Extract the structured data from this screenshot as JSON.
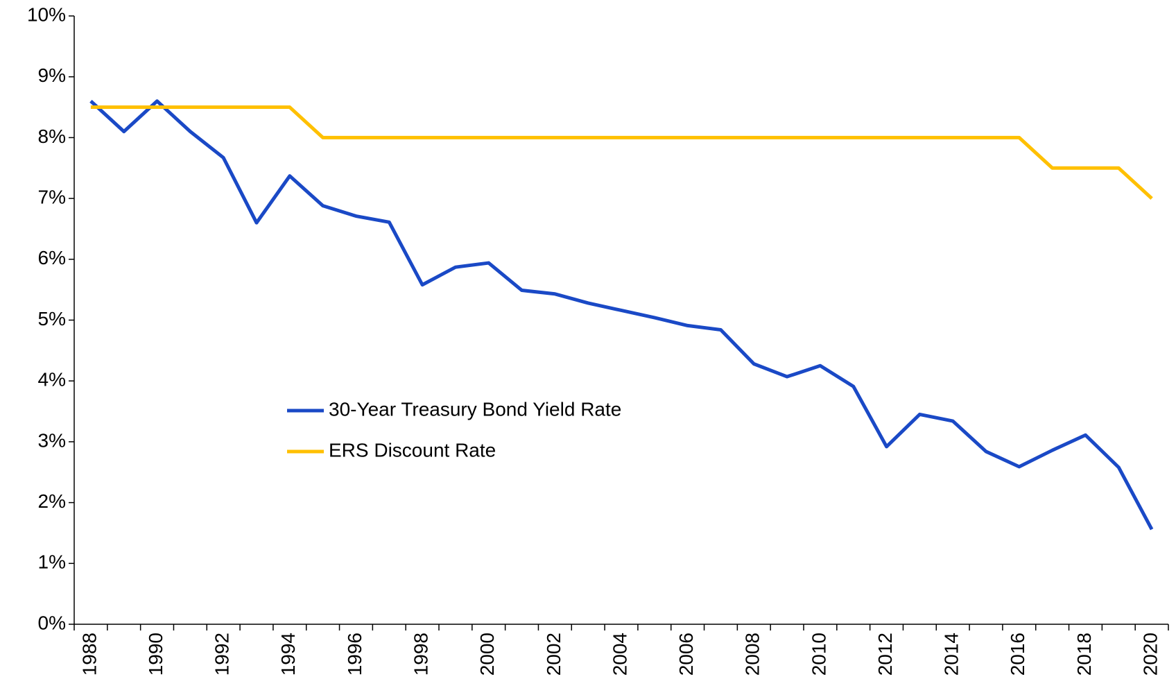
{
  "chart_data": {
    "type": "line",
    "categories": [
      "1988",
      null,
      "1990",
      null,
      "1992",
      null,
      "1994",
      null,
      "1996",
      null,
      "1998",
      null,
      "2000",
      null,
      "2002",
      null,
      "2004",
      null,
      "2006",
      null,
      "2008",
      null,
      "2010",
      null,
      "2012",
      null,
      "2014",
      null,
      "2016",
      null,
      "2018",
      null,
      "2020"
    ],
    "series": [
      {
        "name": "30-Year Treasury Bond Yield Rate",
        "color": "#1a49c6",
        "values": [
          8.6,
          8.1,
          8.6,
          8.1,
          7.67,
          6.6,
          7.37,
          6.88,
          6.71,
          6.61,
          5.58,
          5.87,
          5.94,
          5.49,
          5.43,
          5.28,
          5.16,
          5.04,
          4.91,
          4.84,
          4.28,
          4.07,
          4.25,
          3.91,
          2.92,
          3.45,
          3.34,
          2.84,
          2.59,
          2.86,
          3.11,
          2.58,
          1.56
        ]
      },
      {
        "name": "ERS Discount Rate",
        "color": "#ffc000",
        "values": [
          8.5,
          8.5,
          8.5,
          8.5,
          8.5,
          8.5,
          8.5,
          8.0,
          8.0,
          8.0,
          8.0,
          8.0,
          8.0,
          8.0,
          8.0,
          8.0,
          8.0,
          8.0,
          8.0,
          8.0,
          8.0,
          8.0,
          8.0,
          8.0,
          8.0,
          8.0,
          8.0,
          8.0,
          8.0,
          7.5,
          7.5,
          7.5,
          7.0
        ]
      }
    ],
    "ylim": [
      0,
      10
    ],
    "yticks": [
      {
        "value": 0,
        "label": "0%"
      },
      {
        "value": 1,
        "label": "1%"
      },
      {
        "value": 2,
        "label": "2%"
      },
      {
        "value": 3,
        "label": "3%"
      },
      {
        "value": 4,
        "label": "4%"
      },
      {
        "value": 5,
        "label": "5%"
      },
      {
        "value": 6,
        "label": "6%"
      },
      {
        "value": 7,
        "label": "7%"
      },
      {
        "value": 8,
        "label": "8%"
      },
      {
        "value": 9,
        "label": "9%"
      },
      {
        "value": 10,
        "label": "10%"
      }
    ],
    "grid": false,
    "legend": "center"
  }
}
